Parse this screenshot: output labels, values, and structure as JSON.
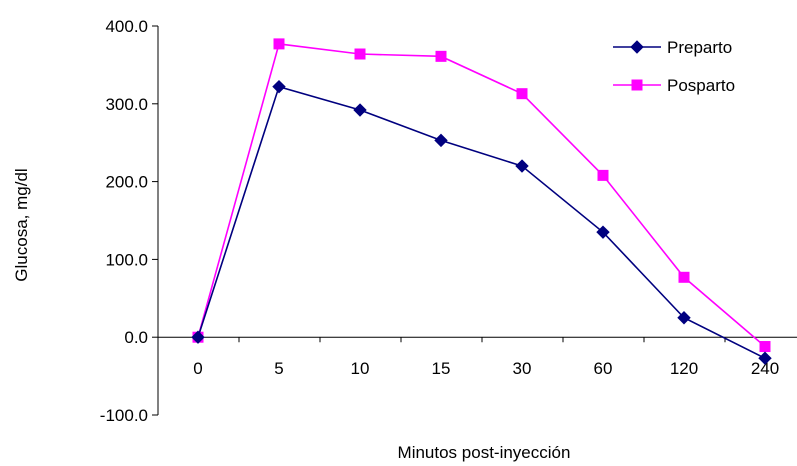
{
  "chart_data": {
    "type": "line",
    "title": "",
    "xlabel": "Minutos post-inyección",
    "ylabel": "Glucosa, mg/dl",
    "categories": [
      "0",
      "5",
      "10",
      "15",
      "30",
      "60",
      "120",
      "240"
    ],
    "ylim": [
      -100,
      400
    ],
    "yticks": [
      -100,
      0,
      100,
      200,
      300,
      400
    ],
    "ytick_labels": [
      "-100.0",
      "0.0",
      "100.0",
      "200.0",
      "300.0",
      "400.0"
    ],
    "grid": false,
    "legend_position": "top-right",
    "series": [
      {
        "name": "Preparto",
        "color": "#00007f",
        "marker": "diamond",
        "values": [
          0,
          322,
          292,
          253,
          220,
          135,
          25,
          -27
        ]
      },
      {
        "name": "Posparto",
        "color": "#ff00ff",
        "marker": "square",
        "values": [
          0,
          377,
          364,
          361,
          313,
          208,
          77,
          -12
        ]
      }
    ]
  }
}
